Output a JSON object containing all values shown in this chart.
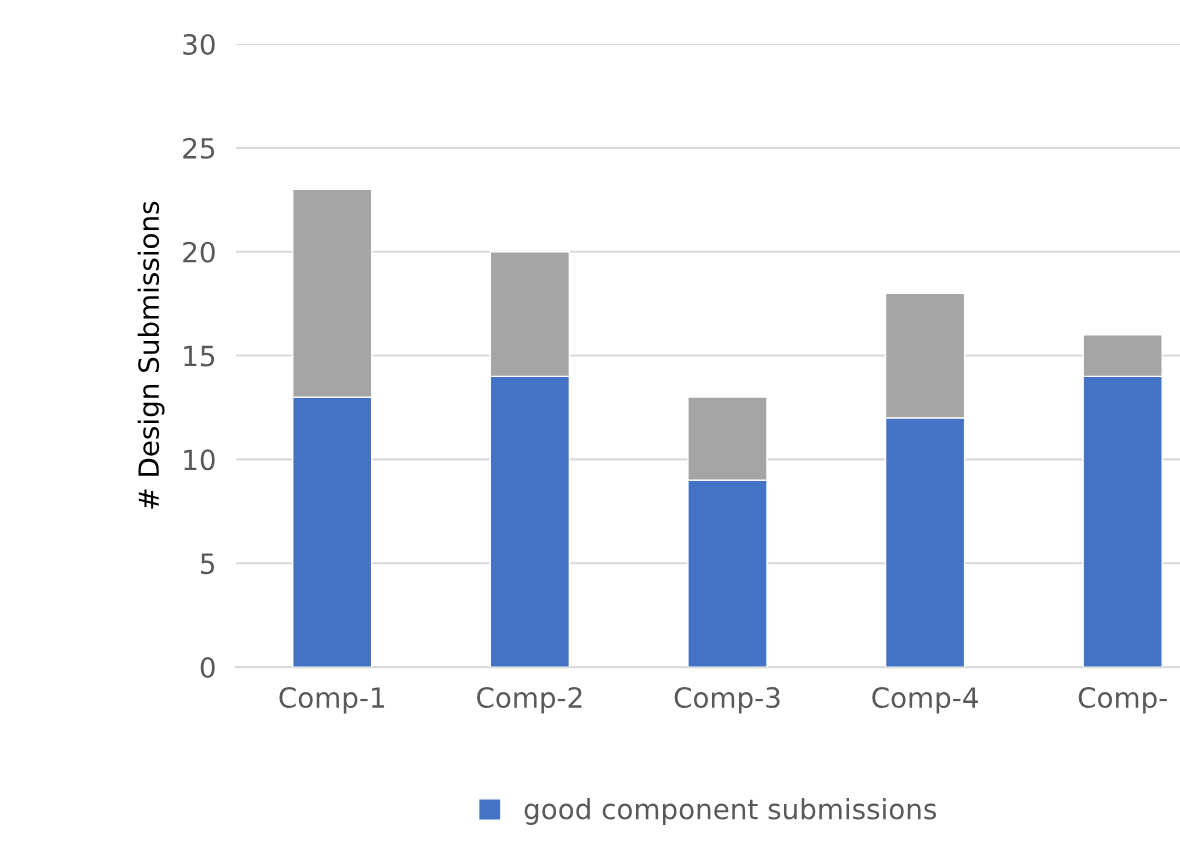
{
  "chart_data": {
    "type": "bar",
    "stacked": true,
    "ylabel": "# Design Submissions",
    "categories": [
      "Comp-1",
      "Comp-2",
      "Comp-3",
      "Comp-4",
      "Comp-"
    ],
    "series": [
      {
        "name": "good component submissions",
        "color": "#4472c4",
        "values": [
          13,
          14,
          9,
          12,
          14
        ]
      },
      {
        "color": "#a5a5a5",
        "values": [
          10,
          6,
          4,
          6,
          2
        ]
      }
    ],
    "ylim": [
      0,
      30
    ],
    "yticks": [
      0,
      5,
      10,
      15,
      20,
      25,
      30
    ],
    "grid": "y",
    "legend": "bottom"
  }
}
